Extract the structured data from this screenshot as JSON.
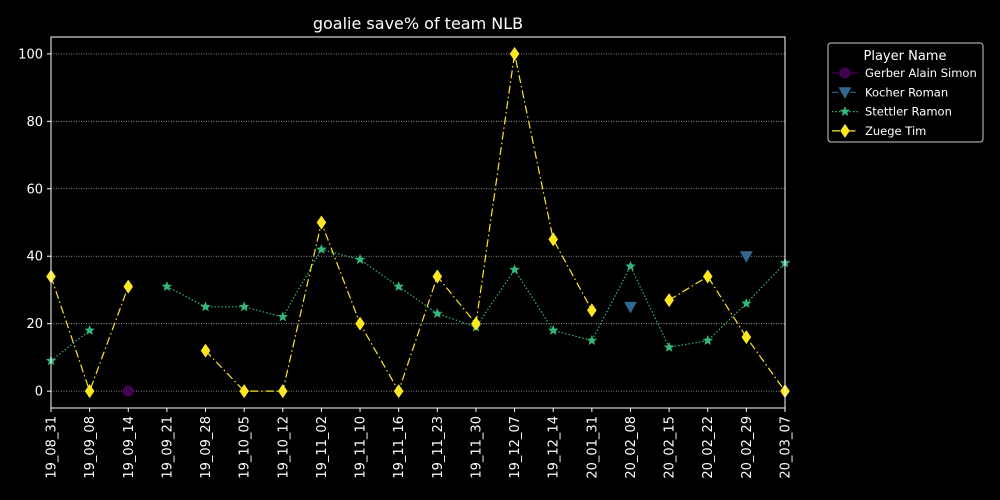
{
  "chart_data": {
    "type": "line",
    "title": "goalie save% of team NLB",
    "xlabel": "",
    "ylabel": "",
    "categories": [
      "19_08_31",
      "19_09_08",
      "19_09_14",
      "19_09_21",
      "19_09_28",
      "19_10_05",
      "19_10_12",
      "19_11_02",
      "19_11_10",
      "19_11_16",
      "19_11_23",
      "19_11_30",
      "19_12_07",
      "19_12_14",
      "20_01_31",
      "20_02_08",
      "20_02_15",
      "20_02_22",
      "20_02_29",
      "20_03_07"
    ],
    "ylim": [
      -5,
      105
    ],
    "yticks": [
      0,
      20,
      40,
      60,
      80,
      100
    ],
    "grid": true,
    "legend": {
      "title": "Player Name",
      "position": "outside-right"
    },
    "series": [
      {
        "name": "Gerber Alain Simon",
        "color": "#440154",
        "marker": "circle",
        "linestyle": "solid",
        "values": [
          null,
          null,
          0,
          null,
          null,
          null,
          null,
          null,
          null,
          null,
          null,
          null,
          null,
          null,
          null,
          null,
          null,
          null,
          null,
          null
        ]
      },
      {
        "name": "Kocher Roman",
        "color": "#31688e",
        "marker": "triangle-down",
        "linestyle": "dashed",
        "values": [
          null,
          null,
          null,
          null,
          null,
          null,
          null,
          null,
          null,
          null,
          null,
          null,
          null,
          null,
          null,
          25,
          null,
          null,
          40,
          null
        ]
      },
      {
        "name": "Stettler Ramon",
        "color": "#35b779",
        "marker": "star",
        "linestyle": "dotted",
        "values": [
          9,
          18,
          null,
          31,
          25,
          25,
          22,
          42,
          39,
          31,
          23,
          19,
          36,
          18,
          15,
          37,
          13,
          15,
          26,
          38
        ]
      },
      {
        "name": "Zuege Tim",
        "color": "#fde725",
        "marker": "diamond",
        "linestyle": "dashdot",
        "values": [
          34,
          0,
          31,
          null,
          12,
          0,
          0,
          50,
          20,
          0,
          34,
          20,
          100,
          45,
          24,
          null,
          27,
          34,
          16,
          0
        ]
      }
    ]
  }
}
